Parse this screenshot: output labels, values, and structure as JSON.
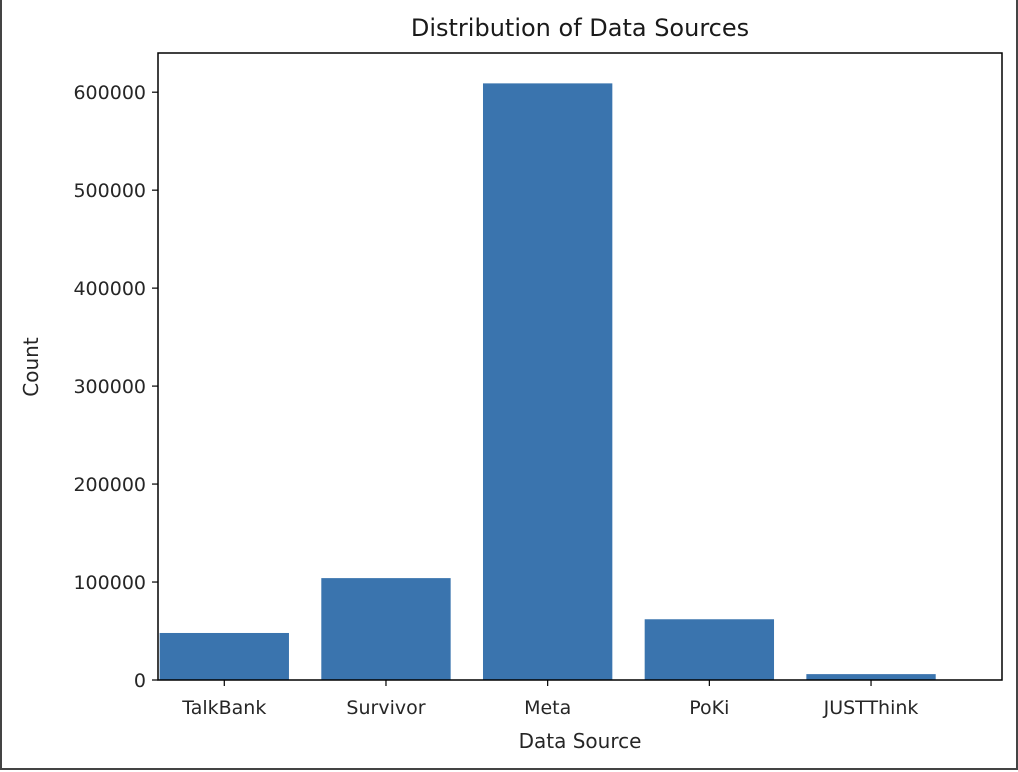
{
  "chart_data": {
    "type": "bar",
    "title": "Distribution of Data Sources",
    "xlabel": "Data Source",
    "ylabel": "Count",
    "categories": [
      "TalkBank",
      "Survivor",
      "Meta",
      "PoKi",
      "JUSTThink"
    ],
    "values": [
      48000,
      104000,
      609000,
      62000,
      6000
    ],
    "ylim": [
      0,
      640000
    ],
    "yticks": [
      0,
      100000,
      200000,
      300000,
      400000,
      500000,
      600000
    ],
    "ytick_labels": [
      "0",
      "100000",
      "200000",
      "300000",
      "400000",
      "500000",
      "600000"
    ],
    "grid": false,
    "bar_color": "#3a74ae"
  }
}
